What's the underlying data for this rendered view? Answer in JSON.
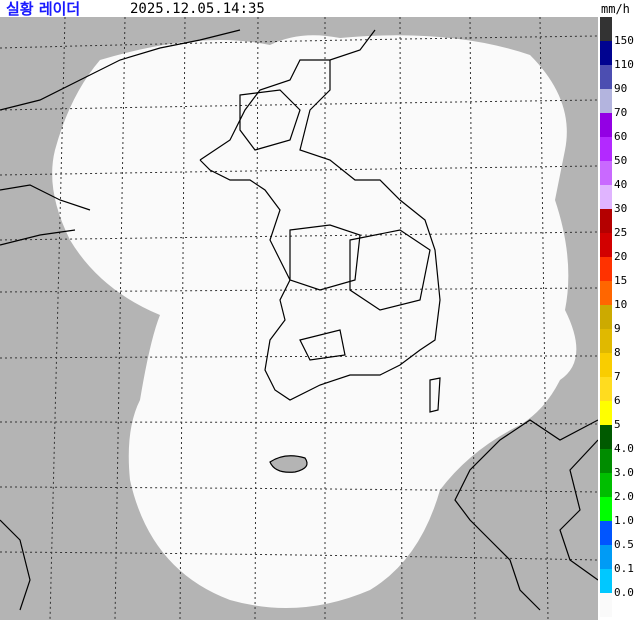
{
  "header": {
    "title": "실황 레이더",
    "timestamp": "2025.12.05.14:35"
  },
  "legend": {
    "unit": "mm/h",
    "labels": [
      "150",
      "110",
      "90",
      "70",
      "60",
      "50",
      "40",
      "30",
      "25",
      "20",
      "15",
      "10",
      "9",
      "8",
      "7",
      "6",
      "5",
      "4.0",
      "3.0",
      "2.0",
      "1.0",
      "0.5",
      "0.1",
      "0.0"
    ],
    "colors": [
      "#333333",
      "#000390",
      "#4c4eb1",
      "#b3b4de",
      "#9300e4",
      "#b329ff",
      "#c969ff",
      "#e0b4ff",
      "#b40000",
      "#d20000",
      "#ff3200",
      "#ff6600",
      "#ccaa00",
      "#e0b900",
      "#f9cd00",
      "#ffdc1f",
      "#ffff00",
      "#005a00",
      "#008c00",
      "#00be00",
      "#00ff00",
      "#0055ff",
      "#009bf5",
      "#00c8ff",
      "#fafafa"
    ]
  },
  "map": {
    "outside_coverage_color": "#b4b4b4",
    "coverage_color": "#fafafa",
    "coastline_color": "#000000"
  }
}
